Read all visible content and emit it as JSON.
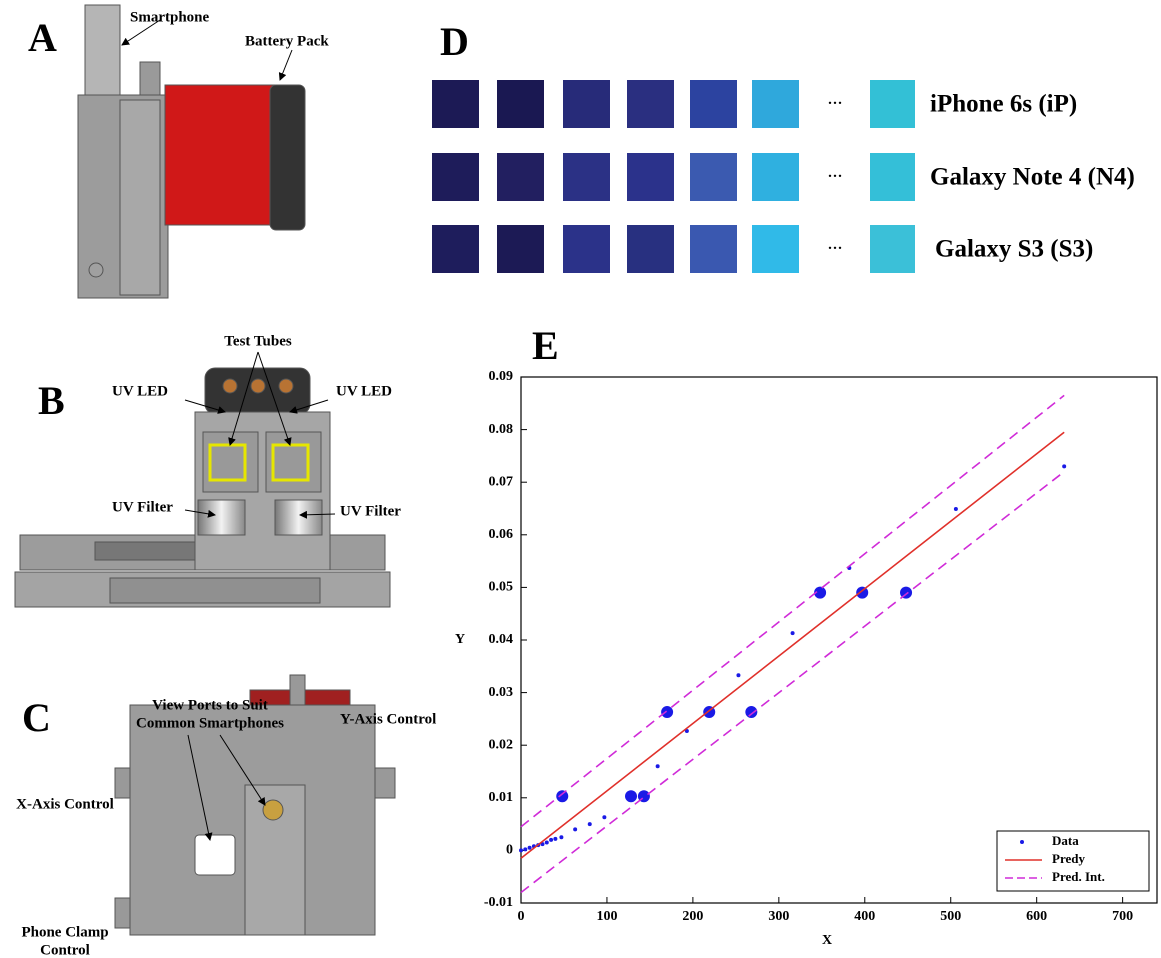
{
  "panels": {
    "A": {
      "label": "A",
      "smartphone": "Smartphone",
      "battery_pack": "Battery Pack"
    },
    "B": {
      "label": "B",
      "test_tubes": "Test Tubes",
      "uv_led_left": "UV LED",
      "uv_led_right": "UV LED",
      "uv_filter_left": "UV Filter",
      "uv_filter_right": "UV Filter"
    },
    "C": {
      "label": "C",
      "view_ports_line1": "View Ports to Suit",
      "view_ports_line2": "Common Smartphones",
      "y_axis_control": "Y-Axis Control",
      "x_axis_control": "X-Axis Control",
      "phone_clamp_line1": "Phone  Clamp",
      "phone_clamp_line2": "Control"
    },
    "D": {
      "label": "D",
      "ellipsis": "···",
      "rows": [
        {
          "name": "iPhone 6s (iP)",
          "colors": [
            "#1c1a55",
            "#1a1852",
            "#272b79",
            "#2a2f80",
            "#2c43a0",
            "#2fa8dc"
          ],
          "last_color": "#33c0d6"
        },
        {
          "name": "Galaxy Note 4 (N4)",
          "colors": [
            "#1e1c5a",
            "#221f60",
            "#2b3185",
            "#2b328b",
            "#3b5ab0",
            "#2fb0e0"
          ],
          "last_color": "#34bfd8"
        },
        {
          "name": "Galaxy S3 (S3)",
          "colors": [
            "#1e1d5c",
            "#1c1a55",
            "#2b3289",
            "#283080",
            "#3a58b0",
            "#30bae8"
          ],
          "last_color": "#3bc0d8"
        }
      ]
    },
    "E": {
      "label": "E"
    }
  },
  "chart_data": {
    "type": "scatter",
    "x_label": "X",
    "y_label": "Y",
    "xlim": [
      0,
      740
    ],
    "ylim": [
      -0.01,
      0.09
    ],
    "xticks": [
      0,
      100,
      200,
      300,
      400,
      500,
      600,
      700
    ],
    "yticks": [
      -0.01,
      0,
      0.01,
      0.02,
      0.03,
      0.04,
      0.05,
      0.06,
      0.07,
      0.08,
      0.09
    ],
    "legend": "lower right",
    "series": [
      {
        "name": "Data",
        "color": "#1a1ae6",
        "mode": "markers",
        "x": [
          0,
          5,
          10,
          15,
          20,
          25,
          30,
          35,
          40,
          47,
          63,
          80,
          97,
          159,
          193,
          253,
          316,
          382,
          506,
          632,
          48,
          128,
          143,
          170,
          219,
          268,
          348,
          397,
          448
        ],
        "values": [
          0,
          0.0002,
          0.0005,
          0.0008,
          0.001,
          0.0012,
          0.0015,
          0.002,
          0.0022,
          0.0025,
          0.004,
          0.005,
          0.0063,
          0.016,
          0.0227,
          0.0333,
          0.0413,
          0.0537,
          0.0649,
          0.073,
          0.0103,
          0.0103,
          0.0103,
          0.0263,
          0.0263,
          0.0263,
          0.049,
          0.049,
          0.049
        ],
        "marker_size": [
          2,
          2,
          2,
          2,
          2,
          2,
          2,
          2,
          2,
          2,
          2,
          2,
          2,
          2,
          2,
          2,
          2,
          2,
          2,
          2,
          6,
          6,
          6,
          6,
          6,
          6,
          6,
          6,
          6
        ]
      },
      {
        "name": "Predy",
        "color": "#e0302a",
        "mode": "line",
        "x": [
          0,
          632
        ],
        "values": [
          -0.0015,
          0.0795
        ]
      },
      {
        "name": "Pred. Int.",
        "color": "#d02bd8",
        "mode": "dashed",
        "x": [
          0,
          632
        ],
        "values": [
          0.0045,
          0.0865
        ],
        "lower": [
          -0.008,
          0.072
        ]
      }
    ]
  }
}
